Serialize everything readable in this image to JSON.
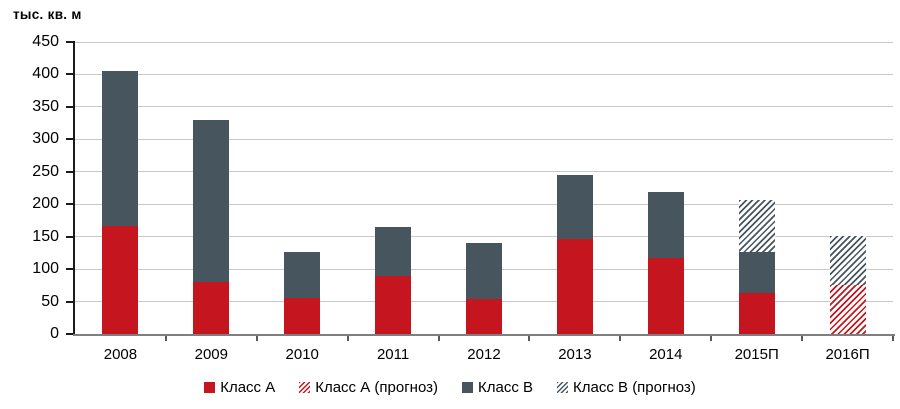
{
  "page": {
    "background": "#ffffff"
  },
  "chart_data": {
    "type": "bar",
    "stacked": true,
    "title": "",
    "ylabel": "тыс. кв. м",
    "xlabel": "",
    "ylim": [
      0,
      450
    ],
    "yticks": [
      0,
      50,
      100,
      150,
      200,
      250,
      300,
      350,
      400,
      450
    ],
    "grid": true,
    "legend_position": "bottom",
    "categories": [
      "2008",
      "2009",
      "2010",
      "2011",
      "2012",
      "2013",
      "2014",
      "2015П",
      "2016П"
    ],
    "series": [
      {
        "name": "Класс А",
        "pattern": "solid",
        "color": "#c5161f",
        "values": [
          167,
          80,
          55,
          90,
          54,
          147,
          117,
          63,
          0
        ]
      },
      {
        "name": "Класс А (прогноз)",
        "pattern": "hatched",
        "color": "#c5161f",
        "values": [
          0,
          0,
          0,
          0,
          0,
          0,
          0,
          0,
          75
        ]
      },
      {
        "name": "Класс В",
        "pattern": "solid",
        "color": "#47555f",
        "values": [
          239,
          250,
          71,
          75,
          87,
          98,
          102,
          64,
          0
        ]
      },
      {
        "name": "Класс В (прогноз)",
        "pattern": "hatched",
        "color": "#47555f",
        "values": [
          0,
          0,
          0,
          0,
          0,
          0,
          0,
          80,
          76
        ]
      }
    ],
    "totals": [
      406,
      330,
      126,
      165,
      141,
      245,
      219,
      207,
      151
    ]
  },
  "style_colors": {
    "gridline": "#c8c8c8",
    "y_axis_line": "#1a1a1a",
    "x_axis_line": "#7f7f7f",
    "tick": "#595959",
    "text": "#000000",
    "hatch_background": "#ffffff"
  }
}
